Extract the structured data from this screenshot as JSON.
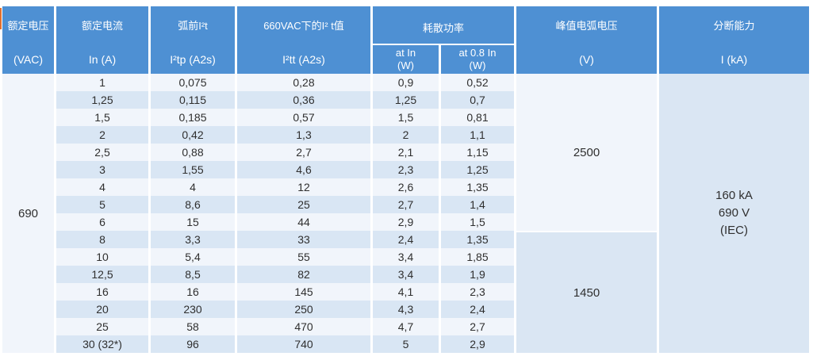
{
  "colors": {
    "header_bg": "#4E90D3",
    "row_light": "#F1F5FB",
    "row_shade": "#D9E6F4",
    "group_shade": "#DAE6F3",
    "header_text": "#FFFFFF",
    "body_text": "#2F2F2F",
    "left_marker": "#E2702F"
  },
  "header": {
    "rated_voltage": {
      "line1": "额定电压",
      "line2": "(VAC)"
    },
    "rated_current": {
      "line1": "额定电流",
      "line2": "In (A)"
    },
    "prearc_i2t": {
      "line1": "弧前I²t",
      "line2": "I²tp (A2s)"
    },
    "i2t_660vac": {
      "line1": "660VAC下的I² t值",
      "line2": "I²tt (A2s)"
    },
    "power_dissipation": {
      "title": "耗散功率",
      "at_in": {
        "line1": "at In",
        "line2": "(W)"
      },
      "at_08in": {
        "line1": "at 0.8 In",
        "line2": "(W)"
      }
    },
    "peak_arc_voltage": {
      "line1": "峰值电弧电压",
      "line2": "(V)"
    },
    "breaking_capacity": {
      "line1": "分断能力",
      "line2": "I (kA)"
    }
  },
  "body": {
    "rated_voltage": "690",
    "peak_arc_voltage_group1": "2500",
    "peak_arc_voltage_group2": "1450",
    "breaking_capacity": {
      "line1": "160 kA",
      "line2": "690 V",
      "line3": "(IEC)"
    },
    "rows": [
      {
        "in": "1",
        "i2tp": "0,075",
        "i2tt": "0,28",
        "p_in": "0,9",
        "p_08": "0,52"
      },
      {
        "in": "1,25",
        "i2tp": "0,115",
        "i2tt": "0,36",
        "p_in": "1,25",
        "p_08": "0,7"
      },
      {
        "in": "1,5",
        "i2tp": "0,185",
        "i2tt": "0,57",
        "p_in": "1,5",
        "p_08": "0,81"
      },
      {
        "in": "2",
        "i2tp": "0,42",
        "i2tt": "1,3",
        "p_in": "2",
        "p_08": "1,1"
      },
      {
        "in": "2,5",
        "i2tp": "0,88",
        "i2tt": "2,7",
        "p_in": "2,1",
        "p_08": "1,15"
      },
      {
        "in": "3",
        "i2tp": "1,55",
        "i2tt": "4,6",
        "p_in": "2,3",
        "p_08": "1,25"
      },
      {
        "in": "4",
        "i2tp": "4",
        "i2tt": "12",
        "p_in": "2,6",
        "p_08": "1,35"
      },
      {
        "in": "5",
        "i2tp": "8,6",
        "i2tt": "25",
        "p_in": "2,7",
        "p_08": "1,4"
      },
      {
        "in": "6",
        "i2tp": "15",
        "i2tt": "44",
        "p_in": "2,9",
        "p_08": "1,5"
      },
      {
        "in": "8",
        "i2tp": "3,3",
        "i2tt": "33",
        "p_in": "2,4",
        "p_08": "1,35"
      },
      {
        "in": "10",
        "i2tp": "5,4",
        "i2tt": "55",
        "p_in": "3,4",
        "p_08": "1,85"
      },
      {
        "in": "12,5",
        "i2tp": "8,5",
        "i2tt": "82",
        "p_in": "3,4",
        "p_08": "1,9"
      },
      {
        "in": "16",
        "i2tp": "16",
        "i2tt": "145",
        "p_in": "4,1",
        "p_08": "2,3"
      },
      {
        "in": "20",
        "i2tp": "230",
        "i2tt": "250",
        "p_in": "4,3",
        "p_08": "2,4"
      },
      {
        "in": "25",
        "i2tp": "58",
        "i2tt": "470",
        "p_in": "4,7",
        "p_08": "2,7"
      },
      {
        "in": "30 (32*)",
        "i2tp": "96",
        "i2tt": "740",
        "p_in": "5",
        "p_08": "2,9"
      }
    ]
  }
}
